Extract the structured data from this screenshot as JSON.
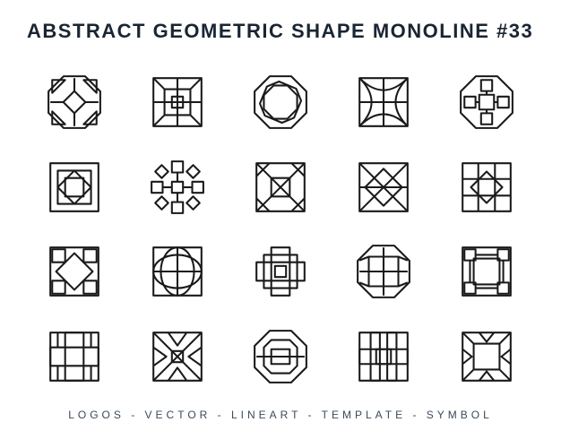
{
  "header": {
    "title": "ABSTRACT GEOMETRIC SHAPE MONOLINE #33"
  },
  "footer": {
    "text": "LOGOS - VECTOR - LINEART - TEMPLATE - SYMBOL"
  },
  "style": {
    "stroke_color": "#1a1a1a",
    "stroke_width": 2,
    "background": "#ffffff",
    "icon_size": 66
  },
  "icons": [
    {
      "id": "shape-01",
      "name": "octagon-triangles"
    },
    {
      "id": "shape-02",
      "name": "square-cross-corners"
    },
    {
      "id": "shape-03",
      "name": "octagon-nested"
    },
    {
      "id": "shape-04",
      "name": "square-arcs"
    },
    {
      "id": "shape-05",
      "name": "octagon-plus-boxes"
    },
    {
      "id": "shape-06",
      "name": "square-nested-diamond"
    },
    {
      "id": "shape-07",
      "name": "radial-squares"
    },
    {
      "id": "shape-08",
      "name": "square-x-triangles"
    },
    {
      "id": "shape-09",
      "name": "square-x-diamond"
    },
    {
      "id": "shape-10",
      "name": "square-grid-diamond"
    },
    {
      "id": "shape-11",
      "name": "square-rot-boxes"
    },
    {
      "id": "shape-12",
      "name": "square-oval"
    },
    {
      "id": "shape-13",
      "name": "cross-overlap"
    },
    {
      "id": "shape-14",
      "name": "octagon-window"
    },
    {
      "id": "shape-15",
      "name": "square-nested-boxes"
    },
    {
      "id": "shape-16",
      "name": "cross-square"
    },
    {
      "id": "shape-17",
      "name": "square-hourglass"
    },
    {
      "id": "shape-18",
      "name": "octagon-hexline"
    },
    {
      "id": "shape-19",
      "name": "square-pillars"
    },
    {
      "id": "shape-20",
      "name": "square-corner-tris"
    }
  ]
}
